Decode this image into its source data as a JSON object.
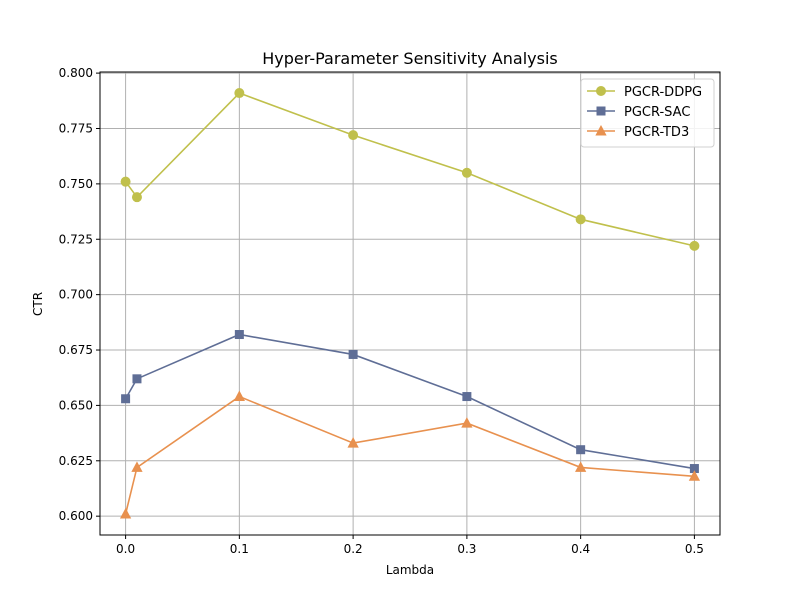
{
  "chart_data": {
    "type": "line",
    "title": "Hyper-Parameter Sensitivity Analysis",
    "xlabel": "Lambda",
    "ylabel": "CTR",
    "x": [
      0.0,
      0.01,
      0.1,
      0.2,
      0.3,
      0.4,
      0.5
    ],
    "xlim": [
      -0.0225,
      0.5225
    ],
    "ylim": [
      0.5915,
      0.8005
    ],
    "xticks": [
      0.0,
      0.1,
      0.2,
      0.3,
      0.4,
      0.5
    ],
    "xtick_labels": [
      "0.0",
      "0.1",
      "0.2",
      "0.3",
      "0.4",
      "0.5"
    ],
    "yticks": [
      0.6,
      0.625,
      0.65,
      0.675,
      0.7,
      0.725,
      0.75,
      0.775,
      0.8
    ],
    "ytick_labels": [
      "0.600",
      "0.625",
      "0.650",
      "0.675",
      "0.700",
      "0.725",
      "0.750",
      "0.775",
      "0.800"
    ],
    "grid": true,
    "legend_position": "top-right",
    "series": [
      {
        "name": "PGCR-DDPG",
        "color": "#c0c04c",
        "marker": "circle",
        "values": [
          0.751,
          0.744,
          0.791,
          0.772,
          0.755,
          0.734,
          0.722
        ]
      },
      {
        "name": "PGCR-SAC",
        "color": "#5f6e96",
        "marker": "square",
        "values": [
          0.653,
          0.662,
          0.682,
          0.673,
          0.654,
          0.63,
          0.6215
        ]
      },
      {
        "name": "PGCR-TD3",
        "color": "#e8914f",
        "marker": "triangle",
        "values": [
          0.601,
          0.622,
          0.654,
          0.633,
          0.642,
          0.622,
          0.618
        ]
      }
    ]
  }
}
